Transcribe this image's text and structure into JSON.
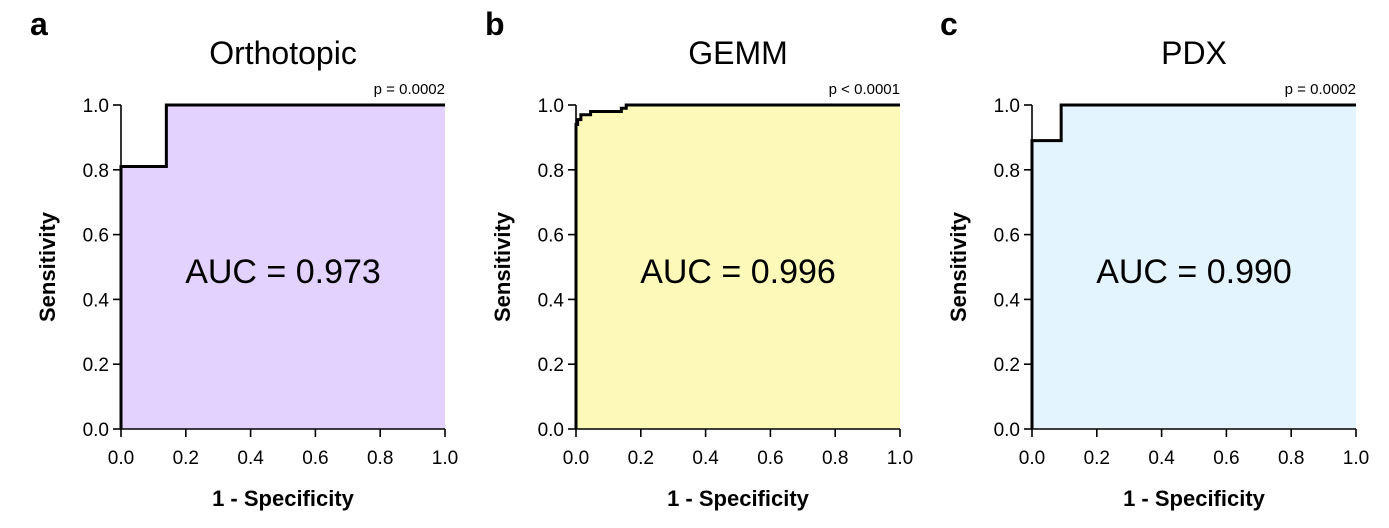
{
  "chart_data": [
    {
      "type": "area",
      "panel": "a",
      "title": "Orthotopic",
      "p_value": "p = 0.0002",
      "annotation": "AUC = 0.973",
      "xlabel": "1 - Specificity",
      "ylabel": "Sensitivity",
      "xlim": [
        0,
        1
      ],
      "ylim": [
        0,
        1
      ],
      "xticks": [
        "0.0",
        "0.2",
        "0.4",
        "0.6",
        "0.8",
        "1.0"
      ],
      "yticks": [
        "0.0",
        "0.2",
        "0.4",
        "0.6",
        "0.8",
        "1.0"
      ],
      "fill_color": "#e3d1fe",
      "roc": {
        "x": [
          0,
          0,
          0.14,
          0.14,
          1
        ],
        "y": [
          0,
          0.81,
          0.81,
          1.0,
          1.0
        ]
      }
    },
    {
      "type": "area",
      "panel": "b",
      "title": "GEMM",
      "p_value": "p < 0.0001",
      "annotation": "AUC = 0.996",
      "xlabel": "1 - Specificity",
      "ylabel": "Sensitivity",
      "xlim": [
        0,
        1
      ],
      "ylim": [
        0,
        1
      ],
      "xticks": [
        "0.0",
        "0.2",
        "0.4",
        "0.6",
        "0.8",
        "1.0"
      ],
      "yticks": [
        "0.0",
        "0.2",
        "0.4",
        "0.6",
        "0.8",
        "1.0"
      ],
      "fill_color": "#fdfab9",
      "roc": {
        "x": [
          0,
          0,
          0.005,
          0.005,
          0.015,
          0.015,
          0.045,
          0.045,
          0.14,
          0.14,
          0.155,
          0.155,
          1
        ],
        "y": [
          0,
          0.94,
          0.94,
          0.955,
          0.955,
          0.97,
          0.97,
          0.98,
          0.98,
          0.99,
          0.99,
          1.0,
          1.0
        ]
      }
    },
    {
      "type": "area",
      "panel": "c",
      "title": "PDX",
      "p_value": "p = 0.0002",
      "annotation": "AUC = 0.990",
      "xlabel": "1 - Specificity",
      "ylabel": "Sensitivity",
      "xlim": [
        0,
        1
      ],
      "ylim": [
        0,
        1
      ],
      "xticks": [
        "0.0",
        "0.2",
        "0.4",
        "0.6",
        "0.8",
        "1.0"
      ],
      "yticks": [
        "0.0",
        "0.2",
        "0.4",
        "0.6",
        "0.8",
        "1.0"
      ],
      "fill_color": "#e4f4fe",
      "roc": {
        "x": [
          0,
          0,
          0.09,
          0.09,
          1
        ],
        "y": [
          0,
          0.89,
          0.89,
          1.0,
          1.0
        ]
      }
    }
  ]
}
